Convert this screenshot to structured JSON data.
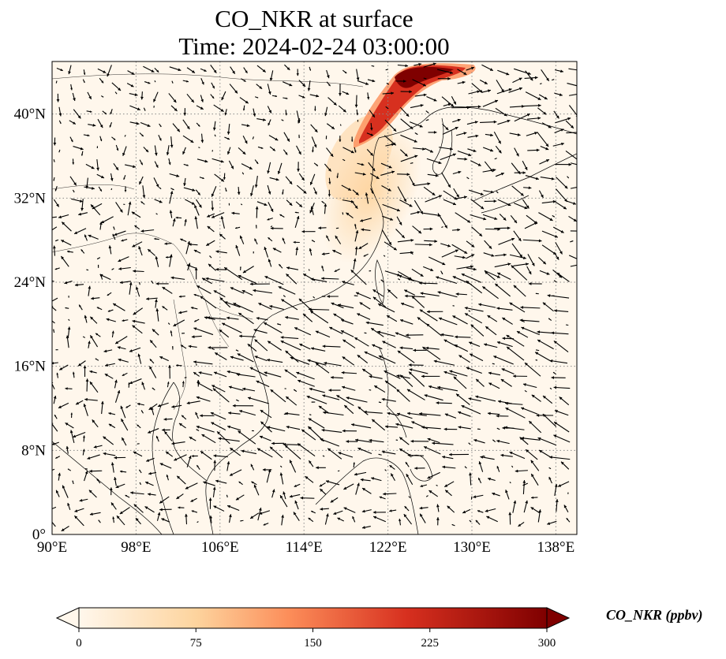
{
  "title": {
    "line1": "CO_NKR at surface",
    "line2": "Time: 2024-02-24 03:00:00"
  },
  "map": {
    "lon_range": [
      90,
      140
    ],
    "lat_range": [
      0,
      45
    ],
    "lon_ticks": [
      "90°E",
      "98°E",
      "106°E",
      "114°E",
      "122°E",
      "130°E",
      "138°E"
    ],
    "lat_ticks": [
      "0°",
      "8°N",
      "16°N",
      "24°N",
      "32°N",
      "40°N"
    ],
    "gridlines": true
  },
  "colorbar": {
    "label": "CO_NKR (ppbv)",
    "ticks": [
      "0",
      "75",
      "150",
      "225",
      "300"
    ],
    "range": [
      0,
      300
    ],
    "colormap": "OrRd",
    "extend": "both"
  },
  "colors": {
    "background_low": "#fff7ec",
    "mid": "#fdbb84",
    "high": "#d7301f",
    "max": "#7f0000"
  }
}
